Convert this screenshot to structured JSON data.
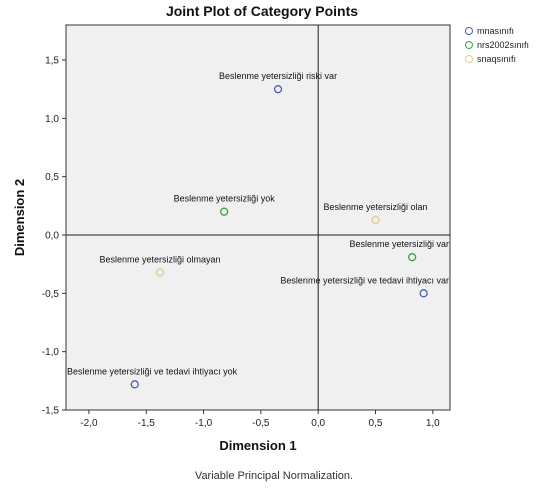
{
  "chart_data": {
    "type": "scatter",
    "title": "Joint Plot of Category Points",
    "xlabel": "Dimension 1",
    "ylabel": "Dimension 2",
    "xlim": [
      -2.2,
      1.15
    ],
    "ylim": [
      -1.5,
      1.8
    ],
    "xticks": [
      -2.0,
      -1.5,
      -1.0,
      -0.5,
      0.0,
      0.5,
      1.0
    ],
    "xtick_labels": [
      "-2,0",
      "-1,5",
      "-1,0",
      "-0,5",
      "0,0",
      "0,5",
      "1,0"
    ],
    "yticks": [
      1.5,
      1.0,
      0.5,
      0.0,
      -0.5,
      -1.0,
      -1.5
    ],
    "ytick_labels": [
      "1,5",
      "1,0",
      "0,5",
      "0,0",
      "-0,5",
      "-1,0",
      "-1,5"
    ],
    "reference_lines": {
      "x": 0,
      "y": 0
    },
    "grid": false,
    "legend_position": "top-right outside",
    "series": [
      {
        "name": "mnasınıfı",
        "color": "#4a5fb5",
        "points": [
          {
            "x": -0.35,
            "y": 1.25,
            "label": "Beslenme yetersizliği riski var"
          },
          {
            "x": 0.92,
            "y": -0.5,
            "label": "Beslenme yetersizliği ve tedavi ihtiyacı var"
          },
          {
            "x": -1.6,
            "y": -1.28,
            "label": "Beslenme yetersizliği ve tedavi ihtiyacı yok"
          }
        ]
      },
      {
        "name": "nrs2002sınıfı",
        "color": "#3aa04a",
        "points": [
          {
            "x": -0.82,
            "y": 0.2,
            "label": "Beslenme yetersizliği yok"
          },
          {
            "x": 0.82,
            "y": -0.19,
            "label": "Beslenme yetersizliği var"
          }
        ]
      },
      {
        "name": "snaqsınıfı",
        "color": "#d9d08a",
        "points": [
          {
            "x": 0.5,
            "y": 0.13,
            "label": "Beslenme yetersizliği olan"
          },
          {
            "x": -1.38,
            "y": -0.32,
            "label": "Beslenme yetersizliği olmayan"
          }
        ]
      }
    ],
    "footnote": "Variable Principal Normalization."
  }
}
